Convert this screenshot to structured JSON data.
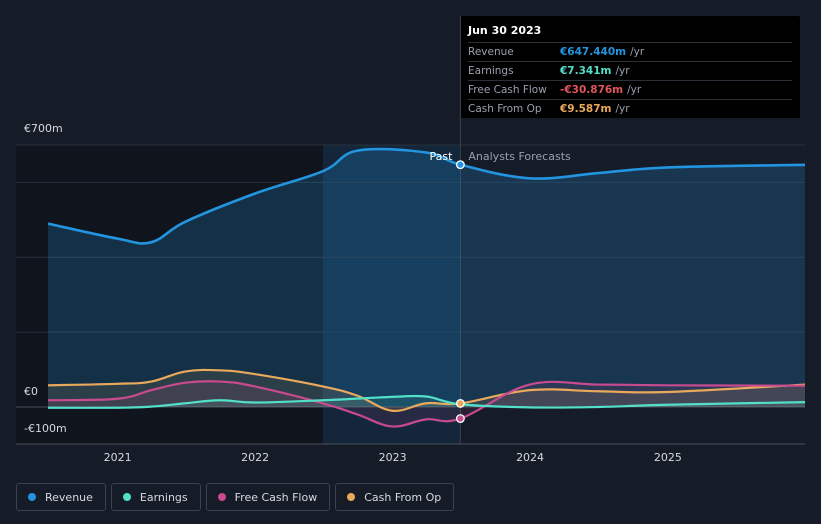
{
  "chart_data": {
    "type": "line",
    "y_axis": {
      "ticks": [
        {
          "label": "€700m",
          "value": 700
        },
        {
          "label": "€0",
          "value": 0
        },
        {
          "label": "-€100m",
          "value": -100
        }
      ],
      "ylim": [
        -100,
        700
      ]
    },
    "x_axis": {
      "ticks": [
        "2021",
        "2022",
        "2023",
        "2024",
        "2025"
      ],
      "xlim": [
        "2020-06-30",
        "2025-12-31"
      ]
    },
    "past_label": "Past",
    "forecast_label": "Analysts Forecasts",
    "series": [
      {
        "name": "Revenue",
        "color": "#2394df",
        "points": [
          [
            "2020-06-30",
            490
          ],
          [
            "2020-12-31",
            450
          ],
          [
            "2021-03-31",
            440
          ],
          [
            "2021-06-30",
            495
          ],
          [
            "2021-12-31",
            570
          ],
          [
            "2022-06-30",
            630
          ],
          [
            "2022-09-30",
            685
          ],
          [
            "2023-03-31",
            680
          ],
          [
            "2023-06-30",
            647.44
          ],
          [
            "2023-12-31",
            611
          ],
          [
            "2024-06-30",
            625
          ],
          [
            "2024-12-31",
            640
          ],
          [
            "2025-12-31",
            647
          ]
        ]
      },
      {
        "name": "Earnings",
        "color": "#52e0c9",
        "points": [
          [
            "2020-06-30",
            -2
          ],
          [
            "2020-12-31",
            -2
          ],
          [
            "2021-03-31",
            1
          ],
          [
            "2021-06-30",
            10
          ],
          [
            "2021-09-30",
            18
          ],
          [
            "2021-12-31",
            12
          ],
          [
            "2022-06-30",
            18
          ],
          [
            "2022-12-31",
            27
          ],
          [
            "2023-03-31",
            28
          ],
          [
            "2023-06-30",
            7.341
          ],
          [
            "2023-12-31",
            -1
          ],
          [
            "2024-06-30",
            0
          ],
          [
            "2024-12-31",
            6
          ],
          [
            "2025-12-31",
            13
          ]
        ]
      },
      {
        "name": "Free Cash Flow",
        "color": "#c84a8f",
        "points": [
          [
            "2020-06-30",
            18
          ],
          [
            "2020-12-31",
            22
          ],
          [
            "2021-03-31",
            45
          ],
          [
            "2021-06-30",
            65
          ],
          [
            "2021-09-30",
            68
          ],
          [
            "2021-12-31",
            55
          ],
          [
            "2022-06-30",
            10
          ],
          [
            "2022-09-30",
            -20
          ],
          [
            "2022-12-31",
            -52
          ],
          [
            "2023-03-31",
            -33
          ],
          [
            "2023-06-30",
            -30.876
          ],
          [
            "2023-12-31",
            60
          ],
          [
            "2024-06-30",
            60
          ],
          [
            "2024-12-31",
            58
          ],
          [
            "2025-12-31",
            57
          ]
        ]
      },
      {
        "name": "Cash From Op",
        "color": "#e8a95c",
        "points": [
          [
            "2020-06-30",
            58
          ],
          [
            "2020-12-31",
            62
          ],
          [
            "2021-03-31",
            68
          ],
          [
            "2021-06-30",
            95
          ],
          [
            "2021-09-30",
            98
          ],
          [
            "2021-12-31",
            88
          ],
          [
            "2022-06-30",
            55
          ],
          [
            "2022-09-30",
            30
          ],
          [
            "2022-12-31",
            -10
          ],
          [
            "2023-03-31",
            10
          ],
          [
            "2023-06-30",
            9.587
          ],
          [
            "2023-12-31",
            45
          ],
          [
            "2024-06-30",
            42
          ],
          [
            "2024-12-31",
            40
          ],
          [
            "2025-12-31",
            60
          ]
        ]
      }
    ]
  },
  "tooltip": {
    "date": "Jun 30 2023",
    "rows": [
      {
        "label": "Revenue",
        "value": "€647.440m",
        "unit": "/yr",
        "color": "#2394df"
      },
      {
        "label": "Earnings",
        "value": "€7.341m",
        "unit": "/yr",
        "color": "#52e0c9"
      },
      {
        "label": "Free Cash Flow",
        "value": "-€30.876m",
        "unit": "/yr",
        "color": "#e0565b"
      },
      {
        "label": "Cash From Op",
        "value": "€9.587m",
        "unit": "/yr",
        "color": "#e8a95c"
      }
    ]
  },
  "legend": [
    {
      "label": "Revenue",
      "color": "#2394df"
    },
    {
      "label": "Earnings",
      "color": "#52e0c9"
    },
    {
      "label": "Free Cash Flow",
      "color": "#c84a8f"
    },
    {
      "label": "Cash From Op",
      "color": "#e8a95c"
    }
  ]
}
